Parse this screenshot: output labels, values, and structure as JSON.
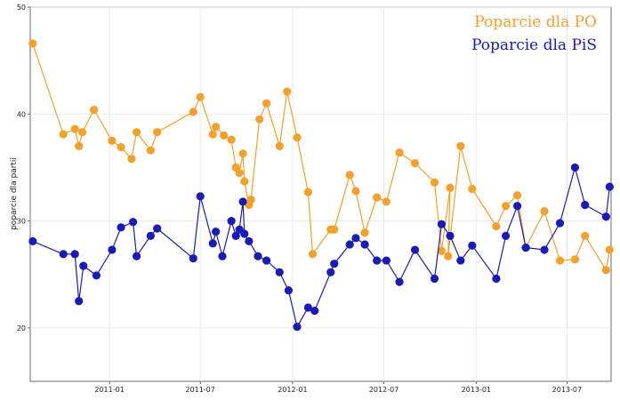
{
  "chart_data": {
    "type": "line",
    "ylabel": "poparcie dla partii",
    "xlabel": "",
    "ylim": [
      15,
      50
    ],
    "xlim": [
      "2010-07-27",
      "2013-09-27"
    ],
    "yticks": [
      20,
      30,
      40,
      50
    ],
    "xticks": [
      {
        "date": "2011-01-01",
        "label": "2011-01"
      },
      {
        "date": "2011-07-01",
        "label": "2011-07"
      },
      {
        "date": "2012-01-01",
        "label": "2012-01"
      },
      {
        "date": "2012-07-01",
        "label": "2012-07"
      },
      {
        "date": "2013-01-01",
        "label": "2013-01"
      },
      {
        "date": "2013-07-01",
        "label": "2013-07"
      }
    ],
    "grid": true,
    "legend_position": "top-right",
    "series": [
      {
        "name": "Poparcie dla PO",
        "color": "#f5a02a",
        "points": [
          [
            "2010-08-01",
            46.6
          ],
          [
            "2010-10-01",
            38.1
          ],
          [
            "2010-10-24",
            38.6
          ],
          [
            "2010-11-01",
            37.0
          ],
          [
            "2010-11-08",
            38.3
          ],
          [
            "2010-12-01",
            40.4
          ],
          [
            "2011-01-06",
            37.5
          ],
          [
            "2011-01-24",
            36.9
          ],
          [
            "2011-02-14",
            35.8
          ],
          [
            "2011-02-24",
            38.3
          ],
          [
            "2011-03-24",
            36.6
          ],
          [
            "2011-04-06",
            38.3
          ],
          [
            "2011-06-17",
            40.2
          ],
          [
            "2011-07-01",
            41.6
          ],
          [
            "2011-07-26",
            38.1
          ],
          [
            "2011-08-01",
            38.8
          ],
          [
            "2011-08-17",
            38.0
          ],
          [
            "2011-09-01",
            37.6
          ],
          [
            "2011-09-10",
            35.0
          ],
          [
            "2011-09-17",
            34.5
          ],
          [
            "2011-09-24",
            36.3
          ],
          [
            "2011-09-27",
            33.7
          ],
          [
            "2011-10-06",
            31.5
          ],
          [
            "2011-10-10",
            32.0
          ],
          [
            "2011-10-27",
            39.5
          ],
          [
            "2011-11-10",
            41.0
          ],
          [
            "2011-12-06",
            37.0
          ],
          [
            "2011-12-21",
            42.1
          ],
          [
            "2012-01-10",
            37.8
          ],
          [
            "2012-02-01",
            32.7
          ],
          [
            "2012-02-10",
            26.9
          ],
          [
            "2012-03-17",
            29.2
          ],
          [
            "2012-03-24",
            29.2
          ],
          [
            "2012-04-24",
            34.3
          ],
          [
            "2012-05-06",
            32.8
          ],
          [
            "2012-05-24",
            28.9
          ],
          [
            "2012-06-17",
            32.2
          ],
          [
            "2012-07-06",
            31.8
          ],
          [
            "2012-08-01",
            36.4
          ],
          [
            "2012-09-01",
            35.4
          ],
          [
            "2012-10-10",
            33.6
          ],
          [
            "2012-10-24",
            27.2
          ],
          [
            "2012-11-10",
            33.1
          ],
          [
            "2012-11-06",
            26.7
          ],
          [
            "2012-12-01",
            37.0
          ],
          [
            "2012-12-24",
            33.0
          ],
          [
            "2013-02-10",
            29.5
          ],
          [
            "2013-03-01",
            31.4
          ],
          [
            "2013-03-24",
            32.4
          ],
          [
            "2013-04-10",
            27.5
          ],
          [
            "2013-05-17",
            30.9
          ],
          [
            "2013-06-17",
            26.3
          ],
          [
            "2013-07-17",
            26.4
          ],
          [
            "2013-08-06",
            28.6
          ],
          [
            "2013-09-17",
            25.4
          ],
          [
            "2013-09-24",
            27.3
          ]
        ]
      },
      {
        "name": "Poparcie dla PiS",
        "color": "#1a1ab8",
        "points": [
          [
            "2010-08-01",
            28.1
          ],
          [
            "2010-10-01",
            26.9
          ],
          [
            "2010-10-24",
            26.9
          ],
          [
            "2010-11-01",
            22.5
          ],
          [
            "2010-11-10",
            25.8
          ],
          [
            "2010-12-06",
            24.9
          ],
          [
            "2011-01-06",
            27.3
          ],
          [
            "2011-01-24",
            29.4
          ],
          [
            "2011-02-17",
            29.9
          ],
          [
            "2011-02-24",
            26.7
          ],
          [
            "2011-03-24",
            28.6
          ],
          [
            "2011-04-06",
            29.3
          ],
          [
            "2011-06-17",
            26.5
          ],
          [
            "2011-07-01",
            32.3
          ],
          [
            "2011-07-26",
            27.9
          ],
          [
            "2011-08-01",
            29.0
          ],
          [
            "2011-08-14",
            26.7
          ],
          [
            "2011-09-01",
            30.0
          ],
          [
            "2011-09-10",
            28.6
          ],
          [
            "2011-09-17",
            29.2
          ],
          [
            "2011-09-24",
            31.8
          ],
          [
            "2011-09-27",
            28.8
          ],
          [
            "2011-10-06",
            28.1
          ],
          [
            "2011-10-24",
            26.7
          ],
          [
            "2011-11-10",
            26.3
          ],
          [
            "2011-12-06",
            25.2
          ],
          [
            "2011-12-24",
            23.5
          ],
          [
            "2012-01-10",
            20.1
          ],
          [
            "2012-02-01",
            21.9
          ],
          [
            "2012-02-14",
            21.6
          ],
          [
            "2012-03-17",
            25.2
          ],
          [
            "2012-03-24",
            26.0
          ],
          [
            "2012-04-24",
            27.8
          ],
          [
            "2012-05-06",
            28.4
          ],
          [
            "2012-05-24",
            27.8
          ],
          [
            "2012-06-17",
            26.3
          ],
          [
            "2012-07-06",
            26.3
          ],
          [
            "2012-08-01",
            24.3
          ],
          [
            "2012-09-01",
            27.3
          ],
          [
            "2012-10-10",
            24.6
          ],
          [
            "2012-10-24",
            29.7
          ],
          [
            "2012-11-10",
            28.6
          ],
          [
            "2012-12-01",
            26.3
          ],
          [
            "2012-12-24",
            27.7
          ],
          [
            "2013-02-10",
            24.6
          ],
          [
            "2013-03-01",
            28.6
          ],
          [
            "2013-03-24",
            31.4
          ],
          [
            "2013-04-10",
            27.5
          ],
          [
            "2013-05-17",
            27.3
          ],
          [
            "2013-06-17",
            29.8
          ],
          [
            "2013-07-17",
            35.0
          ],
          [
            "2013-08-06",
            31.5
          ],
          [
            "2013-09-17",
            30.4
          ],
          [
            "2013-09-24",
            33.2
          ]
        ]
      }
    ]
  }
}
